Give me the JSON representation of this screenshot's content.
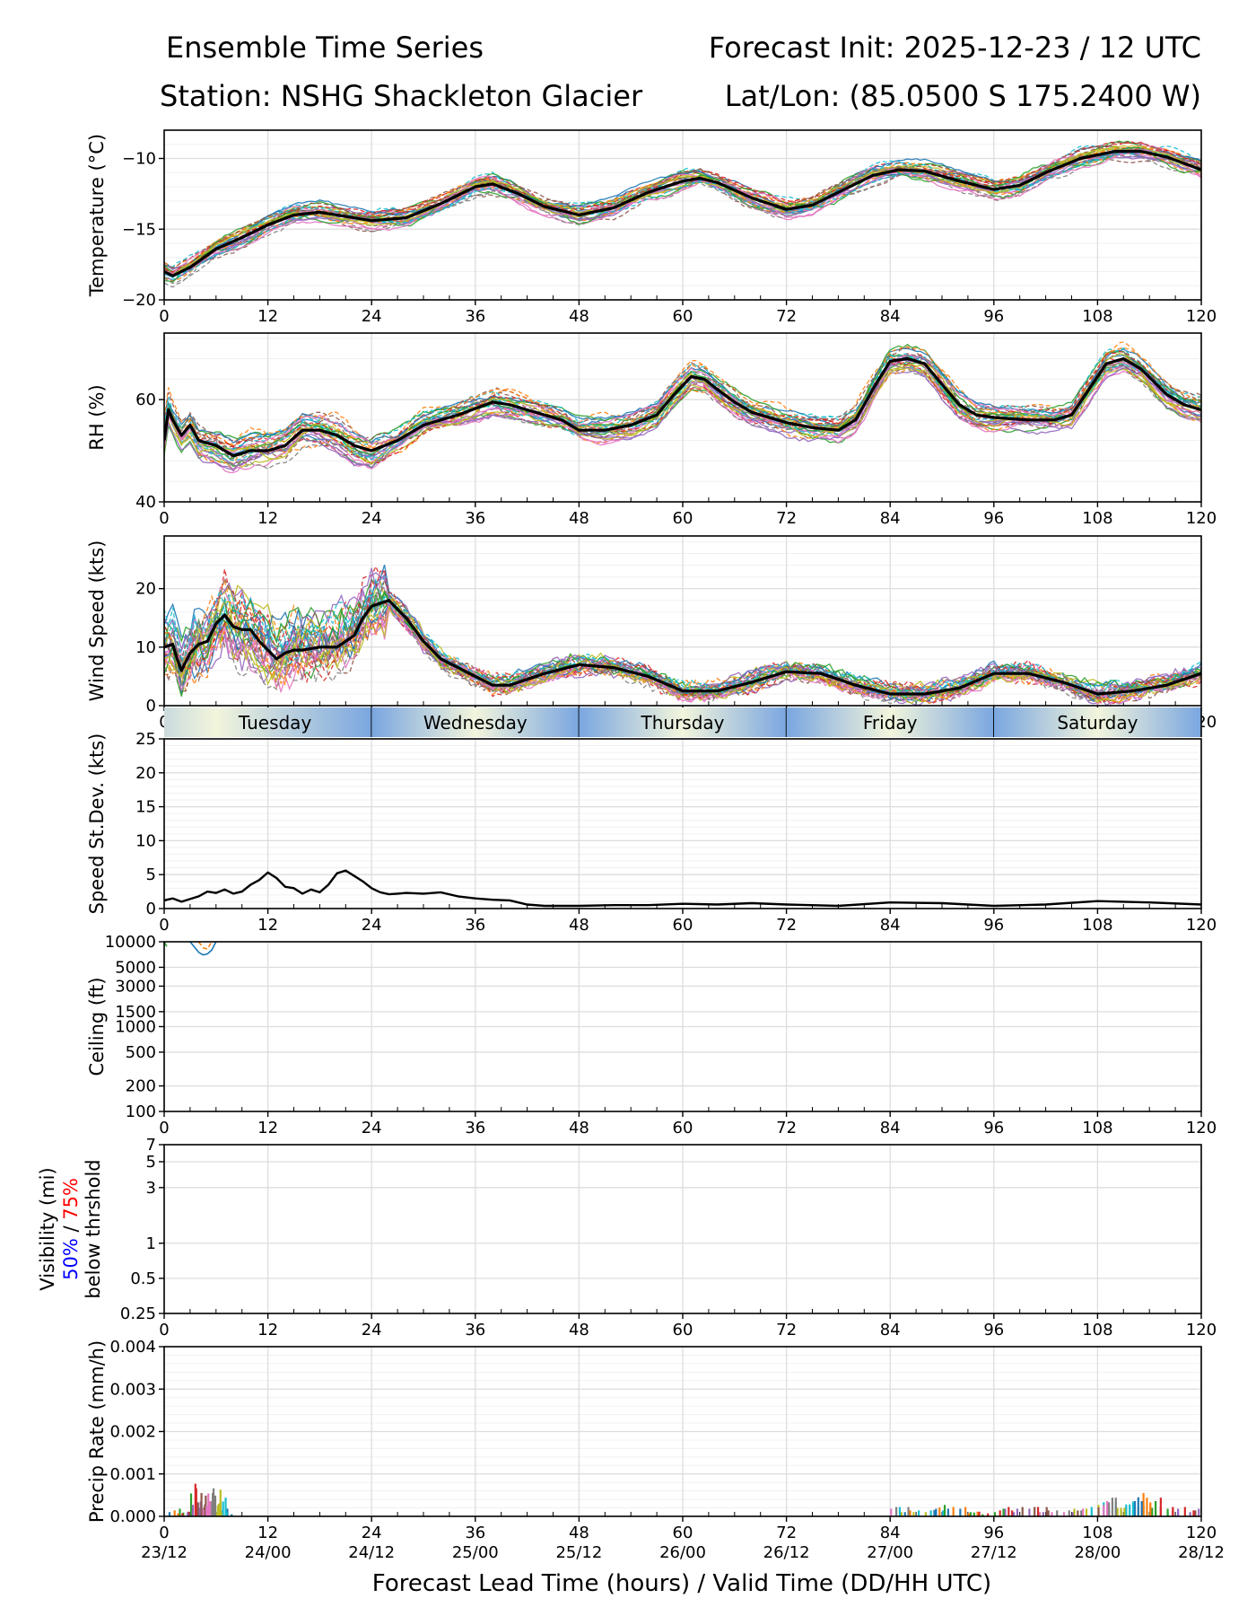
{
  "header": {
    "title": "Ensemble Time Series",
    "init": "Forecast Init: 2025-12-23 / 12 UTC",
    "station": "Station: NSHG Shackleton Glacier",
    "latlon": "Lat/Lon: (85.0500 S 175.2400 W)"
  },
  "colors": {
    "members": [
      "#1f77b4",
      "#ff7f0e",
      "#2ca02c",
      "#d62728",
      "#9467bd",
      "#8c564b",
      "#e377c2",
      "#7f7f7f",
      "#bcbd22",
      "#17becf"
    ],
    "mean": "#000000",
    "grid": "#dddddd",
    "day_band_light": "#f2f5dc",
    "day_band_dark": "#7aa6e0",
    "vis_50": "#0000ff",
    "vis_75": "#ff0000"
  },
  "x_axis": {
    "ticks": [
      0,
      12,
      24,
      36,
      48,
      60,
      72,
      84,
      96,
      108,
      120
    ],
    "tick_labels": [
      "0",
      "12",
      "24",
      "36",
      "48",
      "60",
      "72",
      "84",
      "96",
      "108",
      "120"
    ],
    "valid_labels": [
      "23/12",
      "24/00",
      "24/12",
      "25/00",
      "25/12",
      "26/00",
      "26/12",
      "27/00",
      "27/12",
      "28/00",
      "28/12"
    ],
    "label": "Forecast Lead Time (hours) / Valid Time (DD/HH UTC)",
    "range": [
      0,
      120
    ]
  },
  "day_bands": {
    "labels": [
      "Tuesday",
      "Wednesday",
      "Thursday",
      "Friday",
      "Saturday"
    ],
    "boundaries": [
      -12,
      24,
      48,
      72,
      96,
      120
    ]
  },
  "chart_data": [
    {
      "id": "temp",
      "type": "line",
      "ylabel": "Temperature (°C)",
      "ylim": [
        -20,
        -8
      ],
      "yticks": [
        -20,
        -15,
        -10
      ],
      "ytick_labels": [
        "−20",
        "−15",
        "−10"
      ],
      "member_count": 30,
      "spread": 0.6,
      "mean": {
        "x": [
          0,
          1,
          3,
          6,
          9,
          12,
          15,
          18,
          21,
          24,
          28,
          32,
          36,
          38,
          41,
          44,
          48,
          52,
          56,
          60,
          62,
          64,
          68,
          72,
          75,
          78,
          82,
          85,
          88,
          92,
          96,
          99,
          102,
          106,
          110,
          113,
          116,
          120
        ],
        "y": [
          -18.0,
          -18.3,
          -17.7,
          -16.4,
          -15.6,
          -14.7,
          -14.0,
          -13.8,
          -14.1,
          -14.4,
          -14.2,
          -13.2,
          -12.0,
          -11.8,
          -12.5,
          -13.4,
          -14.0,
          -13.5,
          -12.4,
          -11.6,
          -11.4,
          -11.7,
          -12.8,
          -13.6,
          -13.3,
          -12.4,
          -11.2,
          -10.8,
          -10.9,
          -11.6,
          -12.2,
          -11.9,
          -11.0,
          -10.0,
          -9.5,
          -9.5,
          -9.9,
          -10.8
        ]
      }
    },
    {
      "id": "rh",
      "type": "line",
      "ylabel": "RH (%)",
      "ylim": [
        40,
        73
      ],
      "yticks": [
        40,
        60
      ],
      "ytick_labels": [
        "40",
        "60"
      ],
      "member_count": 30,
      "spread": 2.4,
      "mean": {
        "x": [
          0,
          0.5,
          1,
          2,
          3,
          4,
          6,
          8,
          10,
          12,
          14,
          16,
          18,
          20,
          22,
          24,
          27,
          30,
          34,
          38,
          40,
          42,
          44,
          46,
          48,
          51,
          54,
          57,
          59,
          61,
          62.5,
          64,
          66,
          68,
          72,
          75,
          78,
          80,
          82,
          84,
          86,
          88,
          90,
          92,
          94,
          96,
          100,
          103,
          105,
          107,
          109,
          111,
          113,
          116,
          118,
          120
        ],
        "y": [
          52,
          58,
          56,
          53,
          55,
          52,
          51,
          49,
          50,
          50,
          51,
          54,
          54,
          53,
          51,
          50,
          52,
          55,
          57,
          59.5,
          59,
          58,
          57,
          56,
          54,
          54,
          55,
          57,
          61,
          64.5,
          64,
          62,
          59.5,
          57.5,
          55.5,
          54.5,
          54,
          56,
          62,
          67.5,
          68,
          67,
          63,
          59,
          57,
          56.5,
          56,
          56,
          57,
          62,
          67,
          68,
          66,
          61,
          59,
          58
        ]
      }
    },
    {
      "id": "wind",
      "type": "line",
      "ylabel": "Wind Speed (kts)",
      "ylim": [
        0,
        29
      ],
      "yticks": [
        0,
        10,
        20
      ],
      "ytick_labels": [
        "0",
        "10",
        "20"
      ],
      "member_count": 30,
      "spread": 3.0,
      "mean": {
        "x": [
          0,
          1,
          1.5,
          2,
          3,
          4,
          5,
          6,
          7,
          8,
          9,
          10,
          11,
          12,
          13,
          14,
          15,
          16,
          18,
          20,
          22,
          23,
          24,
          26,
          28,
          30,
          32,
          34,
          36,
          38,
          40,
          44,
          48,
          52,
          56,
          60,
          64,
          68,
          72,
          76,
          80,
          84,
          88,
          92,
          96,
          100,
          104,
          108,
          112,
          116,
          120
        ],
        "y": [
          10,
          10.5,
          8,
          6,
          9,
          10.5,
          11,
          14,
          15.5,
          13.5,
          13,
          13,
          11,
          9.5,
          8,
          9,
          9.5,
          9.5,
          10,
          10,
          12,
          15,
          17,
          18,
          15,
          11,
          8,
          6.5,
          5,
          3.5,
          3.5,
          5.5,
          7,
          6.5,
          5,
          2.5,
          2.5,
          4,
          5.8,
          5.5,
          3.5,
          2,
          2,
          3,
          5.5,
          5.5,
          4,
          2,
          2.5,
          3.5,
          5.5
        ]
      }
    },
    {
      "id": "stdev",
      "type": "line",
      "ylabel": "Speed St.Dev. (kts)",
      "ylim": [
        0,
        25
      ],
      "yticks": [
        0,
        5,
        10,
        15,
        20,
        25
      ],
      "ytick_labels": [
        "0",
        "5",
        "10",
        "15",
        "20",
        "25"
      ],
      "series": [
        {
          "name": "stdev",
          "x": [
            0,
            1,
            2,
            3,
            4,
            5,
            6,
            7,
            8,
            9,
            10,
            11,
            12,
            13,
            14,
            15,
            16,
            17,
            18,
            19,
            20,
            21,
            22,
            23,
            24,
            25,
            26,
            27,
            28,
            30,
            32,
            34,
            36,
            38,
            40,
            42,
            44,
            48,
            52,
            56,
            60,
            64,
            68,
            72,
            78,
            84,
            90,
            96,
            102,
            108,
            114,
            120
          ],
          "y": [
            1.2,
            1.5,
            1.0,
            1.4,
            1.8,
            2.5,
            2.3,
            2.8,
            2.2,
            2.5,
            3.5,
            4.2,
            5.3,
            4.5,
            3.2,
            3.0,
            2.2,
            2.8,
            2.4,
            3.5,
            5.2,
            5.6,
            4.8,
            4.0,
            3.0,
            2.4,
            2.1,
            2.2,
            2.3,
            2.2,
            2.4,
            1.8,
            1.5,
            1.3,
            1.2,
            0.6,
            0.4,
            0.4,
            0.5,
            0.5,
            0.7,
            0.6,
            0.8,
            0.6,
            0.4,
            0.9,
            0.8,
            0.4,
            0.6,
            1.1,
            0.9,
            0.6
          ]
        }
      ]
    },
    {
      "id": "ceiling",
      "type": "line",
      "scale": "log",
      "ylabel": "Ceiling (ft)",
      "ylim": [
        100,
        10000
      ],
      "yticks": [
        100,
        200,
        500,
        1000,
        1500,
        3000,
        5000,
        10000
      ],
      "ytick_labels": [
        "100",
        "200",
        "500",
        "1000",
        "1500",
        "3000",
        "5000",
        "10000"
      ],
      "series": [
        {
          "name": "member-a",
          "x": [
            3,
            4,
            4.5,
            5,
            5.5,
            6
          ],
          "y": [
            10000,
            7500,
            7000,
            7200,
            8000,
            10000
          ]
        },
        {
          "name": "member-b",
          "x": [
            4,
            4.5,
            5,
            5.5
          ],
          "y": [
            10000,
            8500,
            8200,
            10000
          ]
        },
        {
          "name": "member-c",
          "x": [
            0,
            0.3
          ],
          "y": [
            10000,
            8800
          ]
        }
      ]
    },
    {
      "id": "visibility",
      "type": "line",
      "scale": "log",
      "ylabel_lines": [
        "Visibility (mi)",
        "50%",
        " / ",
        "75%",
        "below thrshold"
      ],
      "ylim": [
        0.25,
        7
      ],
      "yticks": [
        0.25,
        0.5,
        1,
        3,
        5,
        7
      ],
      "ytick_labels": [
        "0.25",
        "0.5",
        "1",
        "3",
        "5",
        "7"
      ],
      "series": []
    },
    {
      "id": "precip",
      "type": "bar",
      "ylabel": "Precip Rate (mm/h)",
      "ylim": [
        0,
        0.004
      ],
      "yticks": [
        0,
        0.001,
        0.002,
        0.003,
        0.004
      ],
      "ytick_labels": [
        "0.000",
        "0.001",
        "0.002",
        "0.003",
        "0.004"
      ],
      "series": [
        {
          "name": "early-1",
          "x": [
            0.5,
            1.5,
            3,
            3.5,
            4,
            4.5,
            5,
            5.5,
            6
          ],
          "y": [
            0.0002,
            0.0001,
            0.0006,
            0.0007,
            0.0004,
            0.0003,
            0.0006,
            0.0005,
            0.0002
          ]
        },
        {
          "name": "early-2",
          "x": [
            2,
            3.2,
            4.2,
            5.2,
            5.8,
            6.5
          ],
          "y": [
            0.0001,
            0.0003,
            0.0005,
            0.0007,
            0.0004,
            0.0001
          ]
        },
        {
          "name": "late-1",
          "x": [
            84,
            86,
            88,
            90,
            92,
            94,
            96,
            98,
            100,
            102,
            104,
            106,
            108,
            110,
            112,
            114,
            116,
            118,
            120
          ],
          "y": [
            0.0002,
            0.0002,
            0.0002,
            0.0002,
            0.0002,
            0.0001,
            0.0002,
            0.0002,
            0.0002,
            0.0002,
            0.0002,
            0.0002,
            0.0003,
            0.0003,
            0.0003,
            0.0004,
            0.0002,
            0.0002,
            0.0002
          ]
        },
        {
          "name": "late-2",
          "x": [
            85,
            89,
            93,
            97,
            101,
            105,
            108,
            109,
            110,
            111,
            112,
            113,
            114,
            116,
            119
          ],
          "y": [
            0.0002,
            0.0003,
            0.0001,
            0.0002,
            0.0002,
            0.0002,
            0.0003,
            0.0004,
            0.0004,
            0.0004,
            0.0005,
            0.0004,
            0.0003,
            0.0002,
            0.0002
          ]
        }
      ]
    }
  ]
}
